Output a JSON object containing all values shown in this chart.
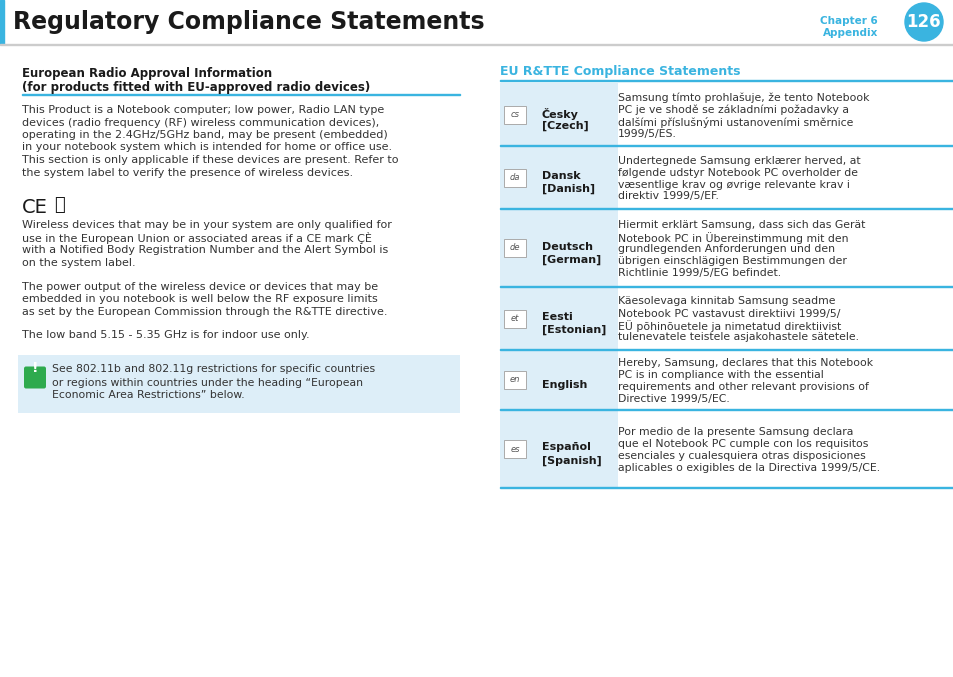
{
  "title": "Regulatory Compliance Statements",
  "chapter_line1": "Chapter 6",
  "chapter_line2": "Appendix",
  "page_num": "126",
  "header_bar_color": "#3ab4e0",
  "chapter_text_color": "#3ab4e0",
  "left_section_title_line1": "European Radio Approval Information",
  "left_section_title_line2": "(for products fitted with EU-approved radio devices)",
  "left_para1_lines": [
    "This Product is a Notebook computer; low power, Radio LAN type",
    "devices (radio frequency (RF) wireless communication devices),",
    "operating in the 2.4GHz/5GHz band, may be present (embedded)",
    "in your notebook system which is intended for home or office use.",
    "This section is only applicable if these devices are present. Refer to",
    "the system label to verify the presence of wireless devices."
  ],
  "left_para2_lines": [
    "Wireless devices that may be in your system are only qualified for",
    "use in the European Union or associated areas if a CE mark ÇÈ",
    "with a Notified Body Registration Number and the Alert Symbol is",
    "on the system label."
  ],
  "left_para3_lines": [
    "The power output of the wireless device or devices that may be",
    "embedded in you notebook is well below the RF exposure limits",
    "as set by the European Commission through the R&TTE directive."
  ],
  "left_para4": "The low band 5.15 - 5.35 GHz is for indoor use only.",
  "warning_text_lines": [
    "See 802.11b and 802.11g restrictions for specific countries",
    "or regions within countries under the heading “European",
    "Economic Area Restrictions” below."
  ],
  "warning_bg": "#ddeef8",
  "warning_icon_color": "#2eaa4e",
  "right_section_title": "EU R&TTE Compliance Statements",
  "right_title_color": "#3ab4e0",
  "table_rows": [
    {
      "lang_code": "cs",
      "lang_name_lines": [
        "Česky",
        "[Czech]"
      ],
      "text_lines": [
        "Samsung tímto prohlašuje, že tento Notebook",
        "PC je ve shodě se základními požadavky a",
        "dalšími příslušnými ustanoveními směrnice",
        "1999/5/ES."
      ]
    },
    {
      "lang_code": "da",
      "lang_name_lines": [
        "Dansk",
        "[Danish]"
      ],
      "text_lines": [
        "Undertegnede Samsung erklærer herved, at",
        "følgende udstyr Notebook PC overholder de",
        "væsentlige krav og øvrige relevante krav i",
        "direktiv 1999/5/EF."
      ]
    },
    {
      "lang_code": "de",
      "lang_name_lines": [
        "Deutsch",
        "[German]"
      ],
      "text_lines": [
        "Hiermit erklärt Samsung, dass sich das Gerät",
        "Notebook PC in Übereinstimmung mit den",
        "grundlegenden Anforderungen und den",
        "übrigen einschlägigen Bestimmungen der",
        "Richtlinie 1999/5/EG befindet."
      ]
    },
    {
      "lang_code": "et",
      "lang_name_lines": [
        "Eesti",
        "[Estonian]"
      ],
      "text_lines": [
        "Käesolevaga kinnitab Samsung seadme",
        "Notebook PC vastavust direktiivi 1999/5/",
        "EÜ põhinõuetele ja nimetatud direktiivist",
        "tulenevatele teistele asjakohastele sätetele."
      ]
    },
    {
      "lang_code": "en",
      "lang_name_lines": [
        "English"
      ],
      "text_lines": [
        "Hereby, Samsung, declares that this Notebook",
        "PC is in compliance with the essential",
        "requirements and other relevant provisions of",
        "Directive 1999/5/EC."
      ]
    },
    {
      "lang_code": "es",
      "lang_name_lines": [
        "Español",
        "[Spanish]"
      ],
      "text_lines": [
        "Por medio de la presente Samsung declara",
        "que el Notebook PC cumple con los requisitos",
        "esenciales y cualesquiera otras disposiciones",
        "aplicables o exigibles de la Directiva 1999/5/CE."
      ]
    }
  ],
  "table_line_color": "#3ab4e0",
  "icon_border_color": "#aaaaaa",
  "icon_bg": "#ddeef8"
}
